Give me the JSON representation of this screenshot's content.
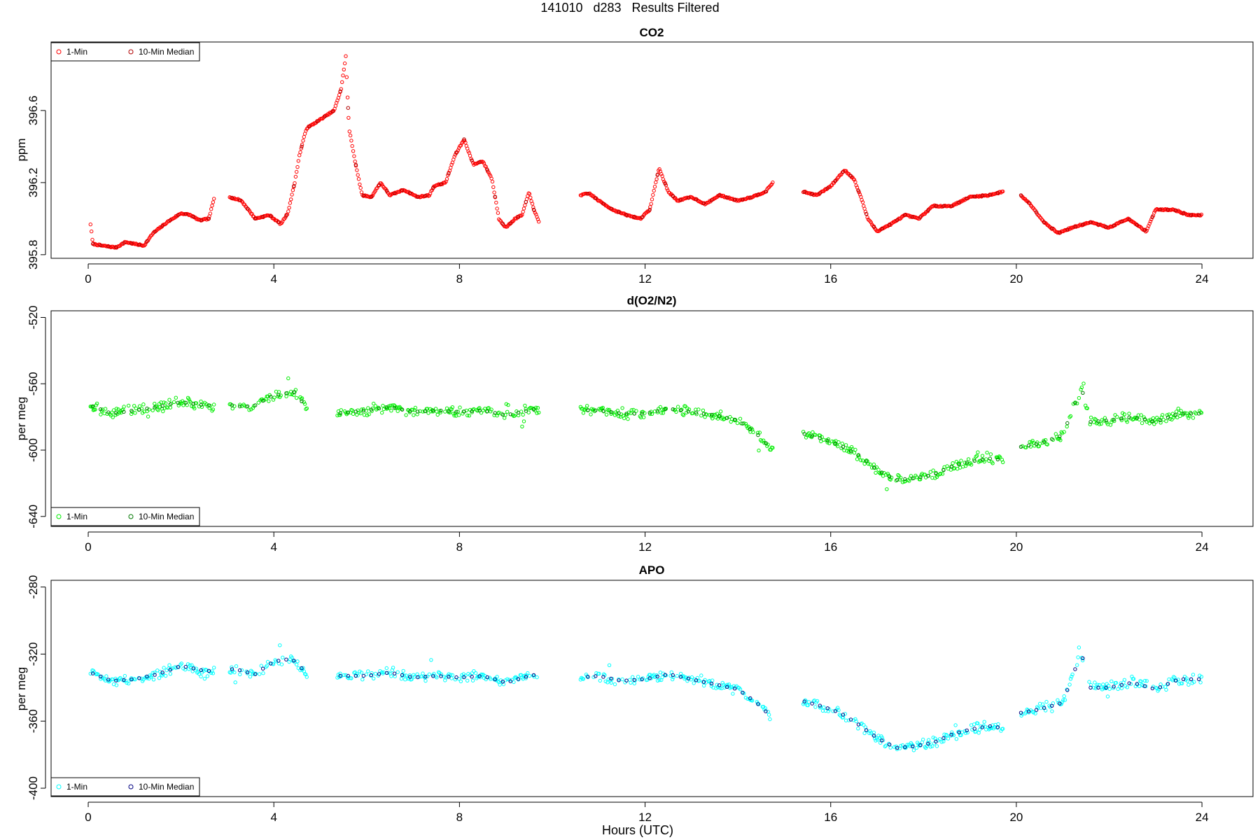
{
  "page": {
    "title": "141010   d283   Results Filtered"
  },
  "panels": [
    {
      "id": "co2",
      "title": "CO2",
      "ylabel": "ppm",
      "legend": {
        "position": "top-left",
        "items": [
          "1-Min",
          "10-Min Median"
        ]
      }
    },
    {
      "id": "o2n2",
      "title": "d(O2/N2)",
      "ylabel": "per meg",
      "legend": {
        "position": "bottom-left",
        "items": [
          "1-Min",
          "10-Min Median"
        ]
      }
    },
    {
      "id": "apo",
      "title": "APO",
      "ylabel": "per meg",
      "xlabel": "Hours (UTC)",
      "legend": {
        "position": "bottom-left",
        "items": [
          "1-Min",
          "10-Min Median"
        ]
      }
    }
  ],
  "chart_data": [
    {
      "type": "scatter",
      "title": "CO2",
      "xlabel": "",
      "ylabel": "ppm",
      "xlim": [
        -0.8,
        25.1
      ],
      "ylim": [
        395.78,
        396.98
      ],
      "xticks": [
        0,
        4,
        8,
        12,
        16,
        20,
        24
      ],
      "yticks": [
        395.8,
        396.2,
        396.6
      ],
      "grid": false,
      "legend": "top-left",
      "colors": {
        "one_min": "#ff0000",
        "median": "#b00000"
      },
      "gaps": [
        [
          2.72,
          3.05
        ],
        [
          9.72,
          10.6
        ],
        [
          14.75,
          15.4
        ],
        [
          19.72,
          20.1
        ]
      ],
      "key_points": [
        [
          0.05,
          395.97
        ],
        [
          0.1,
          395.86
        ],
        [
          0.3,
          395.85
        ],
        [
          0.6,
          395.84
        ],
        [
          0.8,
          395.87
        ],
        [
          1.0,
          395.86
        ],
        [
          1.2,
          395.85
        ],
        [
          1.4,
          395.92
        ],
        [
          1.7,
          395.98
        ],
        [
          2.0,
          396.03
        ],
        [
          2.2,
          396.02
        ],
        [
          2.4,
          395.99
        ],
        [
          2.6,
          396.0
        ],
        [
          2.72,
          396.12
        ],
        [
          3.05,
          396.12
        ],
        [
          3.3,
          396.1
        ],
        [
          3.6,
          396.0
        ],
        [
          3.9,
          396.02
        ],
        [
          4.15,
          395.97
        ],
        [
          4.3,
          396.03
        ],
        [
          4.45,
          396.2
        ],
        [
          4.55,
          396.35
        ],
        [
          4.7,
          396.5
        ],
        [
          5.3,
          396.6
        ],
        [
          5.45,
          396.72
        ],
        [
          5.55,
          396.9
        ],
        [
          5.62,
          396.5
        ],
        [
          5.75,
          396.32
        ],
        [
          5.9,
          396.13
        ],
        [
          6.1,
          396.12
        ],
        [
          6.3,
          396.2
        ],
        [
          6.5,
          396.13
        ],
        [
          6.8,
          396.16
        ],
        [
          7.1,
          396.12
        ],
        [
          7.35,
          396.13
        ],
        [
          7.45,
          396.18
        ],
        [
          7.7,
          396.2
        ],
        [
          7.9,
          396.35
        ],
        [
          8.1,
          396.44
        ],
        [
          8.3,
          396.3
        ],
        [
          8.5,
          396.32
        ],
        [
          8.7,
          396.22
        ],
        [
          8.85,
          396.0
        ],
        [
          9.0,
          395.95
        ],
        [
          9.2,
          396.0
        ],
        [
          9.35,
          396.02
        ],
        [
          9.5,
          396.15
        ],
        [
          9.6,
          396.05
        ],
        [
          9.72,
          395.98
        ],
        [
          10.6,
          396.13
        ],
        [
          10.8,
          396.14
        ],
        [
          11.0,
          396.1
        ],
        [
          11.3,
          396.05
        ],
        [
          11.6,
          396.02
        ],
        [
          11.9,
          396.0
        ],
        [
          12.1,
          396.05
        ],
        [
          12.3,
          396.28
        ],
        [
          12.5,
          396.15
        ],
        [
          12.7,
          396.1
        ],
        [
          13.0,
          396.12
        ],
        [
          13.3,
          396.08
        ],
        [
          13.6,
          396.13
        ],
        [
          14.0,
          396.1
        ],
        [
          14.3,
          396.12
        ],
        [
          14.6,
          396.15
        ],
        [
          14.75,
          396.2
        ],
        [
          15.4,
          396.15
        ],
        [
          15.7,
          396.13
        ],
        [
          16.0,
          396.18
        ],
        [
          16.3,
          396.27
        ],
        [
          16.5,
          396.22
        ],
        [
          16.65,
          396.12
        ],
        [
          16.8,
          396.0
        ],
        [
          17.0,
          395.93
        ],
        [
          17.3,
          395.97
        ],
        [
          17.6,
          396.02
        ],
        [
          17.9,
          396.0
        ],
        [
          18.2,
          396.07
        ],
        [
          18.6,
          396.07
        ],
        [
          19.0,
          396.12
        ],
        [
          19.4,
          396.13
        ],
        [
          19.72,
          396.15
        ],
        [
          20.1,
          396.13
        ],
        [
          20.3,
          396.08
        ],
        [
          20.6,
          395.98
        ],
        [
          20.9,
          395.92
        ],
        [
          21.2,
          395.95
        ],
        [
          21.6,
          395.98
        ],
        [
          22.0,
          395.95
        ],
        [
          22.4,
          396.0
        ],
        [
          22.8,
          395.93
        ],
        [
          23.0,
          396.05
        ],
        [
          23.4,
          396.05
        ],
        [
          23.7,
          396.02
        ],
        [
          24.0,
          396.02
        ]
      ]
    },
    {
      "type": "scatter",
      "title": "d(O2/N2)",
      "xlabel": "",
      "ylabel": "per meg",
      "xlim": [
        -0.8,
        25.1
      ],
      "ylim": [
        -646,
        -516
      ],
      "xticks": [
        0,
        4,
        8,
        12,
        16,
        20,
        24
      ],
      "yticks": [
        -520,
        -560,
        -600,
        -640
      ],
      "grid": false,
      "legend": "bottom-left",
      "colors": {
        "one_min": "#00ee00",
        "median": "#007700"
      },
      "gaps": [
        [
          2.72,
          3.05
        ],
        [
          3.2,
          3.25
        ],
        [
          4.72,
          5.35
        ],
        [
          9.72,
          10.6
        ],
        [
          14.75,
          15.4
        ],
        [
          19.72,
          20.1
        ]
      ],
      "key_points": [
        [
          0.05,
          -573
        ],
        [
          0.5,
          -578
        ],
        [
          1.0,
          -576
        ],
        [
          1.5,
          -574
        ],
        [
          2.0,
          -571
        ],
        [
          2.5,
          -573
        ],
        [
          2.72,
          -573
        ],
        [
          3.05,
          -573
        ],
        [
          3.2,
          -573
        ],
        [
          3.3,
          -574
        ],
        [
          3.6,
          -573
        ],
        [
          3.9,
          -568
        ],
        [
          4.2,
          -566
        ],
        [
          4.45,
          -565
        ],
        [
          4.72,
          -575
        ],
        [
          5.35,
          -578
        ],
        [
          6.0,
          -576
        ],
        [
          6.5,
          -574
        ],
        [
          7.0,
          -577
        ],
        [
          7.5,
          -576
        ],
        [
          8.0,
          -577
        ],
        [
          8.5,
          -576
        ],
        [
          9.0,
          -579
        ],
        [
          9.5,
          -576
        ],
        [
          9.72,
          -575
        ],
        [
          10.6,
          -576
        ],
        [
          11.0,
          -576
        ],
        [
          11.5,
          -578
        ],
        [
          12.0,
          -578
        ],
        [
          12.5,
          -575
        ],
        [
          13.0,
          -577
        ],
        [
          13.5,
          -579
        ],
        [
          14.0,
          -582
        ],
        [
          14.4,
          -590
        ],
        [
          14.75,
          -600
        ],
        [
          15.4,
          -590
        ],
        [
          15.8,
          -593
        ],
        [
          16.2,
          -597
        ],
        [
          16.6,
          -603
        ],
        [
          17.0,
          -612
        ],
        [
          17.4,
          -618
        ],
        [
          17.8,
          -617
        ],
        [
          18.2,
          -615
        ],
        [
          18.6,
          -610
        ],
        [
          19.0,
          -607
        ],
        [
          19.4,
          -605
        ],
        [
          19.72,
          -606
        ],
        [
          20.1,
          -598
        ],
        [
          20.5,
          -596
        ],
        [
          21.0,
          -591
        ],
        [
          21.4,
          -562
        ],
        [
          21.6,
          -583
        ],
        [
          22.0,
          -582
        ],
        [
          22.5,
          -580
        ],
        [
          23.0,
          -583
        ],
        [
          23.5,
          -578
        ],
        [
          24.0,
          -578
        ]
      ]
    },
    {
      "type": "scatter",
      "title": "APO",
      "xlabel": "Hours (UTC)",
      "ylabel": "per meg",
      "xlim": [
        -0.8,
        25.1
      ],
      "ylim": [
        -405,
        -276
      ],
      "xticks": [
        0,
        4,
        8,
        12,
        16,
        20,
        24
      ],
      "yticks": [
        -280,
        -320,
        -360,
        -400
      ],
      "grid": false,
      "legend": "bottom-left",
      "colors": {
        "one_min": "#00ffff",
        "median": "#000080"
      },
      "gaps": [
        [
          2.72,
          3.05
        ],
        [
          3.2,
          3.25
        ],
        [
          4.72,
          5.35
        ],
        [
          9.72,
          10.6
        ],
        [
          14.75,
          15.4
        ],
        [
          19.72,
          20.1
        ]
      ],
      "key_points": [
        [
          0.05,
          -331
        ],
        [
          0.5,
          -336
        ],
        [
          1.0,
          -335
        ],
        [
          1.5,
          -332
        ],
        [
          2.0,
          -327
        ],
        [
          2.5,
          -330
        ],
        [
          2.72,
          -330
        ],
        [
          3.05,
          -329
        ],
        [
          3.2,
          -329
        ],
        [
          3.3,
          -330
        ],
        [
          3.6,
          -332
        ],
        [
          3.9,
          -326
        ],
        [
          4.2,
          -323
        ],
        [
          4.45,
          -324
        ],
        [
          4.72,
          -332
        ],
        [
          5.35,
          -333
        ],
        [
          6.0,
          -333
        ],
        [
          6.5,
          -331
        ],
        [
          7.0,
          -334
        ],
        [
          7.5,
          -333
        ],
        [
          8.0,
          -334
        ],
        [
          8.5,
          -333
        ],
        [
          9.0,
          -337
        ],
        [
          9.5,
          -333
        ],
        [
          9.72,
          -332
        ],
        [
          10.6,
          -334
        ],
        [
          11.0,
          -333
        ],
        [
          11.5,
          -336
        ],
        [
          12.0,
          -335
        ],
        [
          12.5,
          -332
        ],
        [
          13.0,
          -335
        ],
        [
          13.5,
          -338
        ],
        [
          14.0,
          -341
        ],
        [
          14.4,
          -349
        ],
        [
          14.75,
          -358
        ],
        [
          15.4,
          -348
        ],
        [
          15.8,
          -351
        ],
        [
          16.2,
          -355
        ],
        [
          16.6,
          -362
        ],
        [
          17.0,
          -370
        ],
        [
          17.4,
          -376
        ],
        [
          17.8,
          -375
        ],
        [
          18.2,
          -373
        ],
        [
          18.6,
          -368
        ],
        [
          19.0,
          -365
        ],
        [
          19.4,
          -363
        ],
        [
          19.72,
          -364
        ],
        [
          20.1,
          -355
        ],
        [
          20.5,
          -353
        ],
        [
          21.0,
          -349
        ],
        [
          21.4,
          -319
        ],
        [
          21.6,
          -340
        ],
        [
          22.0,
          -340
        ],
        [
          22.5,
          -337
        ],
        [
          23.0,
          -341
        ],
        [
          23.5,
          -335
        ],
        [
          24.0,
          -335
        ]
      ]
    }
  ]
}
